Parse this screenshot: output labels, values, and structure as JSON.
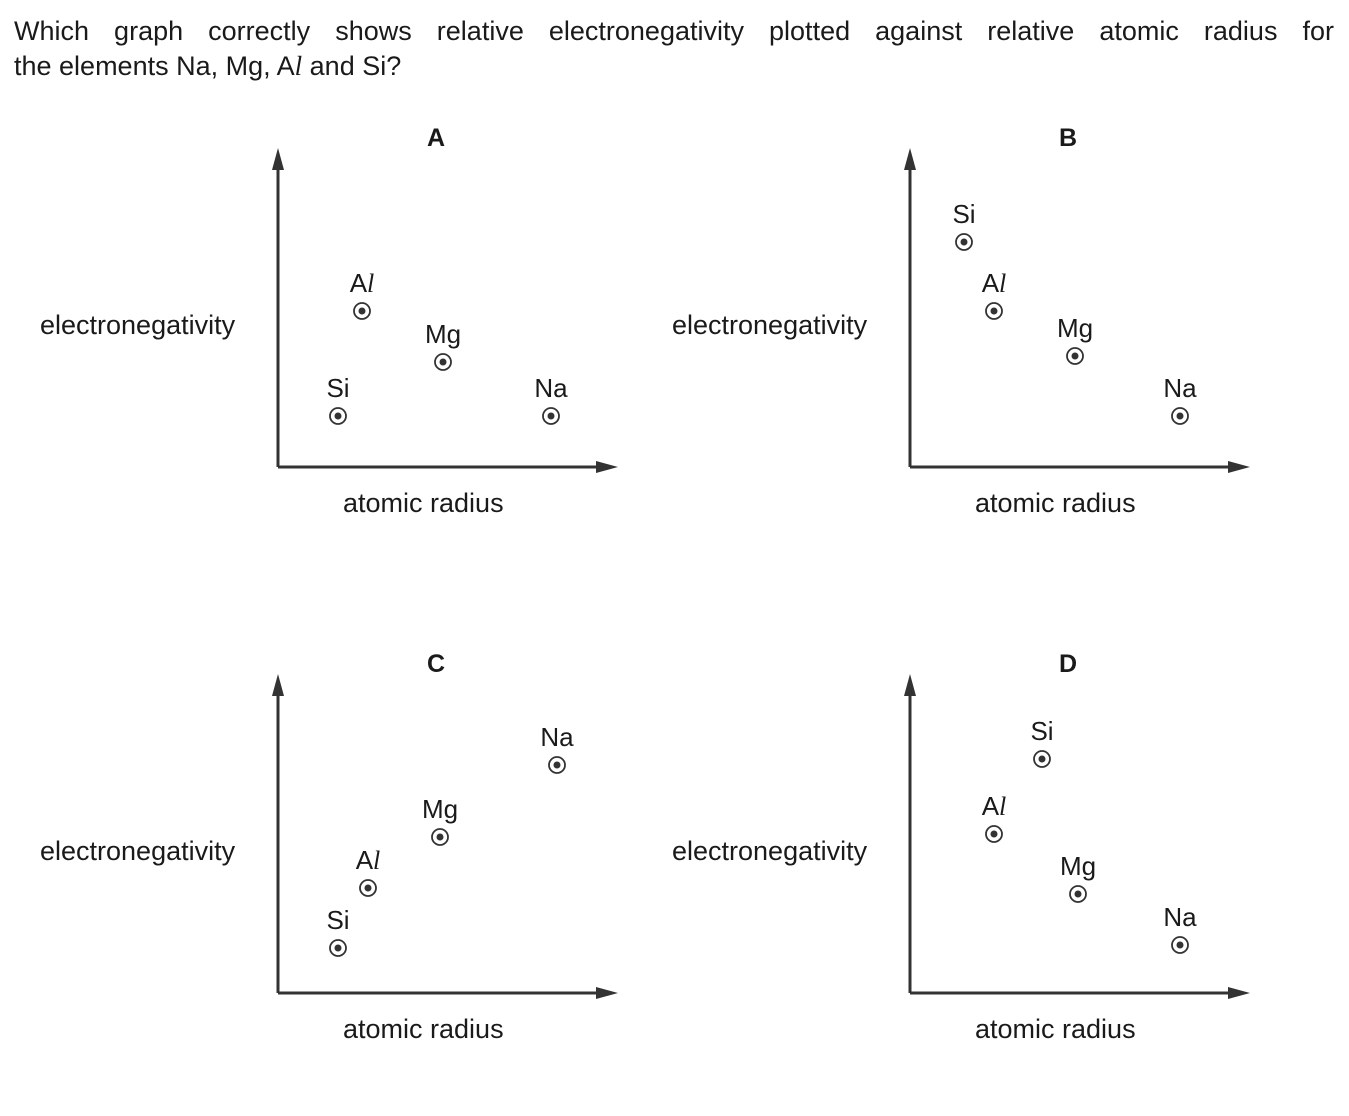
{
  "question": {
    "line1": "Which graph correctly shows relative electronegativity plotted against relative atomic radius for",
    "line2_prefix": "the elements Na, Mg, A",
    "line2_italic": "l",
    "line2_suffix": " and Si?"
  },
  "chart_data": [
    {
      "type": "scatter",
      "title": "A",
      "xlabel": "atomic radius",
      "ylabel": "electronegativity",
      "xlim": [
        0,
        10
      ],
      "ylim": [
        0,
        10
      ],
      "points": [
        {
          "label": "Si",
          "x": 2.0,
          "y": 1.7
        },
        {
          "label": "Al",
          "x": 2.8,
          "y": 5.2
        },
        {
          "label": "Mg",
          "x": 5.5,
          "y": 3.5
        },
        {
          "label": "Na",
          "x": 9.1,
          "y": 1.7
        }
      ]
    },
    {
      "type": "scatter",
      "title": "B",
      "xlabel": "atomic radius",
      "ylabel": "electronegativity",
      "xlim": [
        0,
        10
      ],
      "ylim": [
        0,
        10
      ],
      "points": [
        {
          "label": "Si",
          "x": 1.8,
          "y": 7.5
        },
        {
          "label": "Al",
          "x": 2.8,
          "y": 5.2
        },
        {
          "label": "Mg",
          "x": 5.5,
          "y": 3.7
        },
        {
          "label": "Na",
          "x": 9.0,
          "y": 1.7
        }
      ]
    },
    {
      "type": "scatter",
      "title": "C",
      "xlabel": "atomic radius",
      "ylabel": "electronegativity",
      "xlim": [
        0,
        10
      ],
      "ylim": [
        0,
        10
      ],
      "points": [
        {
          "label": "Si",
          "x": 2.0,
          "y": 1.5
        },
        {
          "label": "Al",
          "x": 3.0,
          "y": 3.5
        },
        {
          "label": "Mg",
          "x": 5.4,
          "y": 5.2
        },
        {
          "label": "Na",
          "x": 9.3,
          "y": 7.6
        }
      ]
    },
    {
      "type": "scatter",
      "title": "D",
      "xlabel": "atomic radius",
      "ylabel": "electronegativity",
      "xlim": [
        0,
        10
      ],
      "ylim": [
        0,
        10
      ],
      "points": [
        {
          "label": "Si",
          "x": 4.4,
          "y": 7.8
        },
        {
          "label": "Al",
          "x": 2.8,
          "y": 5.3
        },
        {
          "label": "Mg",
          "x": 5.6,
          "y": 3.3
        },
        {
          "label": "Na",
          "x": 9.0,
          "y": 1.6
        }
      ]
    }
  ]
}
